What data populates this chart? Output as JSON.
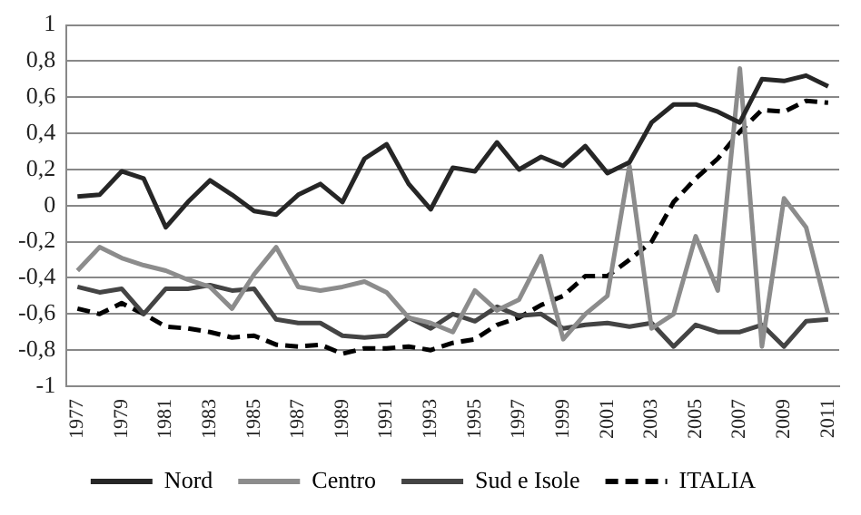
{
  "chart_data": {
    "type": "line",
    "categories": [
      "1977",
      null,
      "1979",
      null,
      "1981",
      null,
      "1983",
      null,
      "1985",
      null,
      "1987",
      null,
      "1989",
      null,
      "1991",
      null,
      "1993",
      null,
      "1995",
      null,
      "1997",
      null,
      "1999",
      null,
      "2001",
      null,
      "2003",
      null,
      "2005",
      null,
      "2007",
      null,
      "2009",
      null,
      "2011"
    ],
    "series": [
      {
        "name": "Nord",
        "color": "#262626",
        "line_style": "solid",
        "values": [
          0.05,
          0.06,
          0.19,
          0.15,
          -0.12,
          0.02,
          0.14,
          0.06,
          -0.03,
          -0.05,
          0.06,
          0.12,
          0.02,
          0.26,
          0.34,
          0.12,
          -0.02,
          0.21,
          0.19,
          0.35,
          0.2,
          0.27,
          0.22,
          0.33,
          0.18,
          0.24,
          0.46,
          0.56,
          0.56,
          0.52,
          0.46,
          0.7,
          0.69,
          0.72,
          0.66
        ]
      },
      {
        "name": "Centro",
        "color": "#8c8c8c",
        "line_style": "solid",
        "values": [
          -0.36,
          -0.23,
          -0.29,
          -0.33,
          -0.36,
          -0.41,
          -0.45,
          -0.57,
          -0.38,
          -0.23,
          -0.45,
          -0.47,
          -0.45,
          -0.42,
          -0.48,
          -0.62,
          -0.65,
          -0.7,
          -0.47,
          -0.58,
          -0.52,
          -0.28,
          -0.74,
          -0.6,
          -0.5,
          0.22,
          -0.68,
          -0.6,
          -0.17,
          -0.47,
          0.76,
          -0.78,
          0.04,
          -0.12,
          -0.6
        ]
      },
      {
        "name": "Sud e Isole",
        "color": "#444444",
        "line_style": "solid",
        "values": [
          -0.45,
          -0.48,
          -0.46,
          -0.6,
          -0.46,
          -0.46,
          -0.44,
          -0.47,
          -0.46,
          -0.63,
          -0.65,
          -0.65,
          -0.72,
          -0.73,
          -0.72,
          -0.62,
          -0.68,
          -0.6,
          -0.64,
          -0.56,
          -0.61,
          -0.6,
          -0.68,
          -0.66,
          -0.65,
          -0.67,
          -0.65,
          -0.78,
          -0.66,
          -0.7,
          -0.7,
          -0.66,
          -0.78,
          -0.64,
          -0.63
        ]
      },
      {
        "name": "ITALIA",
        "color": "#000000",
        "line_style": "dashed",
        "values": [
          -0.57,
          -0.6,
          -0.54,
          -0.6,
          -0.67,
          -0.68,
          -0.7,
          -0.73,
          -0.72,
          -0.77,
          -0.78,
          -0.77,
          -0.82,
          -0.79,
          -0.79,
          -0.78,
          -0.8,
          -0.76,
          -0.74,
          -0.66,
          -0.62,
          -0.55,
          -0.5,
          -0.39,
          -0.39,
          -0.3,
          -0.2,
          0.02,
          0.15,
          0.26,
          0.41,
          0.53,
          0.52,
          0.58,
          0.57
        ]
      }
    ],
    "ylim": [
      -1,
      1
    ],
    "yticks": [
      {
        "value": -1,
        "label": "-1"
      },
      {
        "value": -0.8,
        "label": "-0,8"
      },
      {
        "value": -0.6,
        "label": "-0,6"
      },
      {
        "value": -0.4,
        "label": "-0,4"
      },
      {
        "value": -0.2,
        "label": "-0,2"
      },
      {
        "value": 0,
        "label": "0"
      },
      {
        "value": 0.2,
        "label": "0,2"
      },
      {
        "value": 0.4,
        "label": "0,4"
      },
      {
        "value": 0.6,
        "label": "0,6"
      },
      {
        "value": 0.8,
        "label": "0,8"
      },
      {
        "value": 1,
        "label": "1"
      }
    ],
    "grid": "y",
    "legend": "bottom",
    "marker": "none"
  }
}
